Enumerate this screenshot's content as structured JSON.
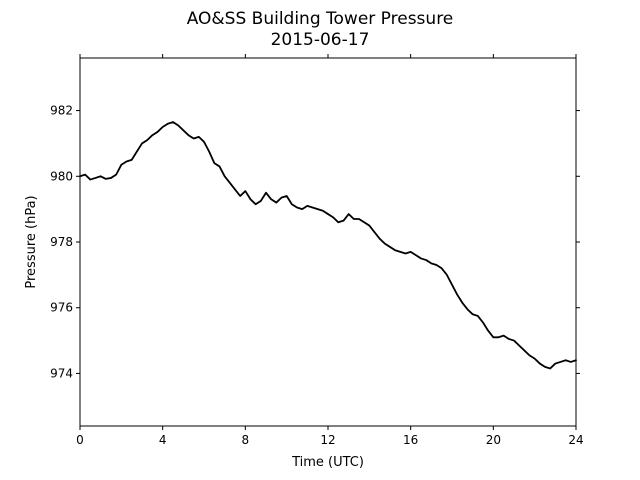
{
  "chart_data": {
    "type": "line",
    "title": "AO&SS Building Tower Pressure",
    "subtitle": "2015-06-17",
    "xlabel": "Time (UTC)",
    "ylabel": "Pressure (hPa)",
    "xlim": [
      0,
      24
    ],
    "ylim": [
      972.4,
      983.6
    ],
    "xticks": [
      0,
      4,
      8,
      12,
      16,
      20,
      24
    ],
    "yticks": [
      974,
      976,
      978,
      980,
      982
    ],
    "grid": false,
    "line_color": "#000000",
    "series": [
      {
        "x": [
          0,
          0.25,
          0.5,
          0.75,
          1.0,
          1.25,
          1.5,
          1.75,
          2.0,
          2.25,
          2.5,
          2.75,
          3.0,
          3.25,
          3.5,
          3.75,
          4.0,
          4.25,
          4.5,
          4.75,
          5.0,
          5.25,
          5.5,
          5.75,
          6.0,
          6.25,
          6.5,
          6.75,
          7.0,
          7.25,
          7.5,
          7.75,
          8.0,
          8.25,
          8.5,
          8.75,
          9.0,
          9.25,
          9.5,
          9.75,
          10.0,
          10.25,
          10.5,
          10.75,
          11.0,
          11.25,
          11.5,
          11.75,
          12.0,
          12.25,
          12.5,
          12.75,
          13.0,
          13.25,
          13.5,
          13.75,
          14.0,
          14.25,
          14.5,
          14.75,
          15.0,
          15.25,
          15.5,
          15.75,
          16.0,
          16.25,
          16.5,
          16.75,
          17.0,
          17.25,
          17.5,
          17.75,
          18.0,
          18.25,
          18.5,
          18.75,
          19.0,
          19.25,
          19.5,
          19.75,
          20.0,
          20.25,
          20.5,
          20.75,
          21.0,
          21.25,
          21.5,
          21.75,
          22.0,
          22.25,
          22.5,
          22.75,
          23.0,
          23.25,
          23.5,
          23.75,
          24.0
        ],
        "values": [
          980.0,
          980.05,
          979.9,
          979.95,
          980.0,
          979.92,
          979.95,
          980.05,
          980.35,
          980.45,
          980.5,
          980.75,
          981.0,
          981.1,
          981.25,
          981.35,
          981.5,
          981.6,
          981.65,
          981.55,
          981.4,
          981.25,
          981.15,
          981.2,
          981.05,
          980.75,
          980.4,
          980.3,
          980.0,
          979.8,
          979.6,
          979.4,
          979.55,
          979.3,
          979.15,
          979.25,
          979.5,
          979.3,
          979.2,
          979.35,
          979.4,
          979.15,
          979.05,
          979.0,
          979.1,
          979.05,
          979.0,
          978.95,
          978.85,
          978.75,
          978.6,
          978.65,
          978.85,
          978.7,
          978.7,
          978.6,
          978.5,
          978.3,
          978.1,
          977.95,
          977.85,
          977.75,
          977.7,
          977.65,
          977.7,
          977.6,
          977.5,
          977.45,
          977.35,
          977.3,
          977.2,
          977.0,
          976.7,
          976.4,
          976.15,
          975.95,
          975.8,
          975.75,
          975.55,
          975.3,
          975.1,
          975.1,
          975.15,
          975.05,
          975.0,
          974.85,
          974.7,
          974.55,
          974.45,
          974.3,
          974.2,
          974.15,
          974.3,
          974.35,
          974.4,
          974.35,
          974.4
        ]
      }
    ]
  }
}
